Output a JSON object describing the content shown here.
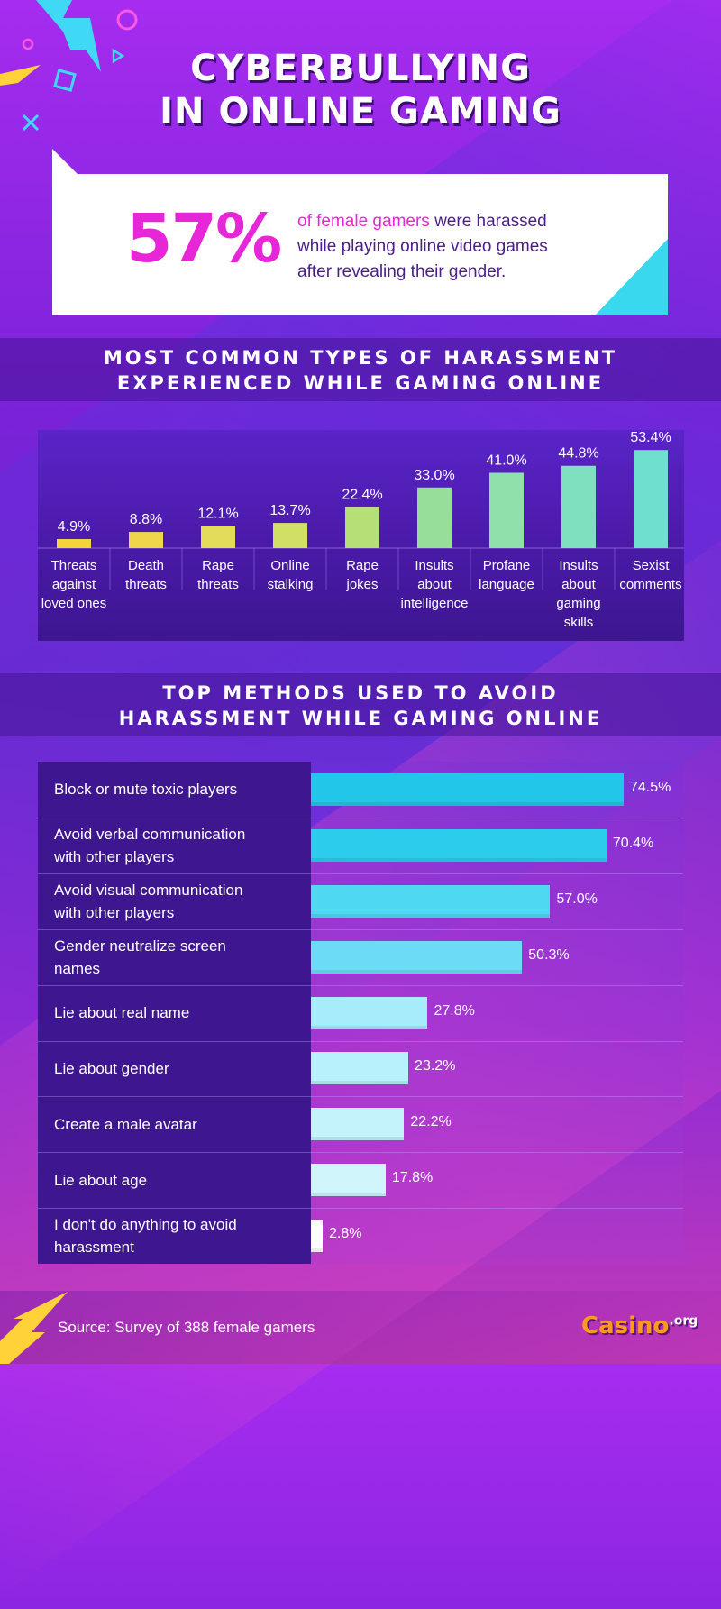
{
  "title": {
    "line1": "CYBERBULLYING",
    "line2": "IN ONLINE GAMING"
  },
  "hero": {
    "stat": "57%",
    "highlight": "of female gamers",
    "line1_rest": " were harassed",
    "line2": "while playing online video games",
    "line3": "after revealing their gender."
  },
  "section1": {
    "title1": "MOST COMMON TYPES OF HARASSMENT",
    "title2": "EXPERIENCED WHILE GAMING ONLINE"
  },
  "section2": {
    "title1": "TOP METHODS USED TO AVOID",
    "title2": "HARASSMENT WHILE GAMING ONLINE"
  },
  "chart_data": [
    {
      "type": "bar",
      "categories": [
        "Threats against loved ones",
        "Death threats",
        "Rape threats",
        "Online stalking",
        "Rape jokes",
        "Insults about intelligence",
        "Profane language",
        "Insults about gaming skills",
        "Sexist comments"
      ],
      "category_lines": [
        [
          "Threats",
          "against",
          "loved ones"
        ],
        [
          "Death",
          "threats"
        ],
        [
          "Rape",
          "threats"
        ],
        [
          "Online",
          "stalking"
        ],
        [
          "Rape",
          "jokes"
        ],
        [
          "Insults",
          "about",
          "intelligence"
        ],
        [
          "Profane",
          "language"
        ],
        [
          "Insults",
          "about",
          "gaming",
          "skills"
        ],
        [
          "Sexist",
          "comments"
        ]
      ],
      "values": [
        4.9,
        8.8,
        12.1,
        13.7,
        22.4,
        33.0,
        41.0,
        44.8,
        53.4
      ],
      "labels": [
        "4.9%",
        "8.8%",
        "12.1%",
        "13.7%",
        "22.4%",
        "33.0%",
        "41.0%",
        "44.8%",
        "53.4%"
      ],
      "colors": [
        "#f5d43a",
        "#f0d64a",
        "#e2dc5a",
        "#d2df66",
        "#b6df78",
        "#97de98",
        "#8fe0ab",
        "#7fe0bf",
        "#6fe0cf"
      ],
      "ylim": [
        0,
        60
      ]
    },
    {
      "type": "bar",
      "orientation": "horizontal",
      "categories": [
        "Block or mute toxic players",
        "Avoid verbal communication with other players",
        "Avoid visual communication with other players",
        "Gender neutralize screen names",
        "Lie about real name",
        "Lie about gender",
        "Create a male avatar",
        "Lie about age",
        "I don't do anything to avoid harassment"
      ],
      "category_lines": [
        [
          "Block or mute toxic players"
        ],
        [
          "Avoid verbal communication",
          "with other players"
        ],
        [
          "Avoid visual communication",
          "with other players"
        ],
        [
          "Gender neutralize screen",
          "names"
        ],
        [
          "Lie about real name"
        ],
        [
          "Lie about gender"
        ],
        [
          "Create a male avatar"
        ],
        [
          "Lie about age"
        ],
        [
          "I don't do anything to avoid",
          "harassment"
        ]
      ],
      "values": [
        74.5,
        70.4,
        57.0,
        50.3,
        27.8,
        23.2,
        22.2,
        17.8,
        2.8
      ],
      "labels": [
        "74.5%",
        "70.4%",
        "57.0%",
        "50.3%",
        "27.8%",
        "23.2%",
        "22.2%",
        "17.8%",
        "2.8%"
      ],
      "colors": [
        "#22c6e8",
        "#2ccdec",
        "#4fd8f2",
        "#6cdcf6",
        "#a6ecfa",
        "#b8f1fb",
        "#c4f3fb",
        "#d0f6fc",
        "#ffffff"
      ],
      "xlim": [
        0,
        80
      ]
    }
  ],
  "source": "Source: Survey of 388 female gamers",
  "logo": {
    "main": "Casino",
    "suffix": ".org"
  }
}
